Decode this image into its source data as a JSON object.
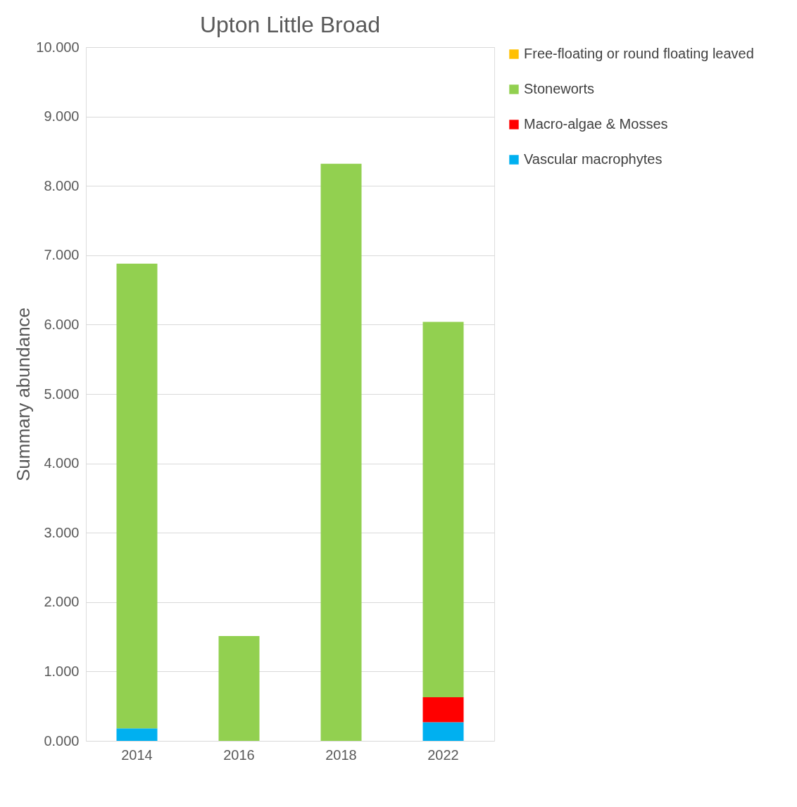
{
  "chart_data": {
    "type": "bar",
    "title": "Upton Little Broad",
    "ylabel": "Summary abundance",
    "categories": [
      "2014",
      "2016",
      "2018",
      "2022"
    ],
    "stacked": true,
    "series": [
      {
        "name": "Vascular macrophytes",
        "color": "#00b0f0",
        "values": [
          0.18,
          0,
          0,
          0.27
        ]
      },
      {
        "name": "Macro-algae & Mosses",
        "color": "#ff0000",
        "values": [
          0,
          0,
          0,
          0.36
        ]
      },
      {
        "name": "Stoneworts",
        "color": "#92d050",
        "values": [
          6.7,
          1.51,
          8.32,
          5.41
        ]
      },
      {
        "name": "Free-floating or round floating leaved",
        "color": "#ffc000",
        "values": [
          0,
          0,
          0,
          0
        ]
      }
    ],
    "ylim": [
      0,
      10
    ],
    "yticks": [
      {
        "value": 0,
        "label": "0.000"
      },
      {
        "value": 1,
        "label": "1.000"
      },
      {
        "value": 2,
        "label": "2.000"
      },
      {
        "value": 3,
        "label": "3.000"
      },
      {
        "value": 4,
        "label": "4.000"
      },
      {
        "value": 5,
        "label": "5.000"
      },
      {
        "value": 6,
        "label": "6.000"
      },
      {
        "value": 7,
        "label": "7.000"
      },
      {
        "value": 8,
        "label": "8.000"
      },
      {
        "value": 9,
        "label": "9.000"
      },
      {
        "value": 10,
        "label": "10.000"
      }
    ],
    "grid": "y",
    "legend": "right"
  }
}
